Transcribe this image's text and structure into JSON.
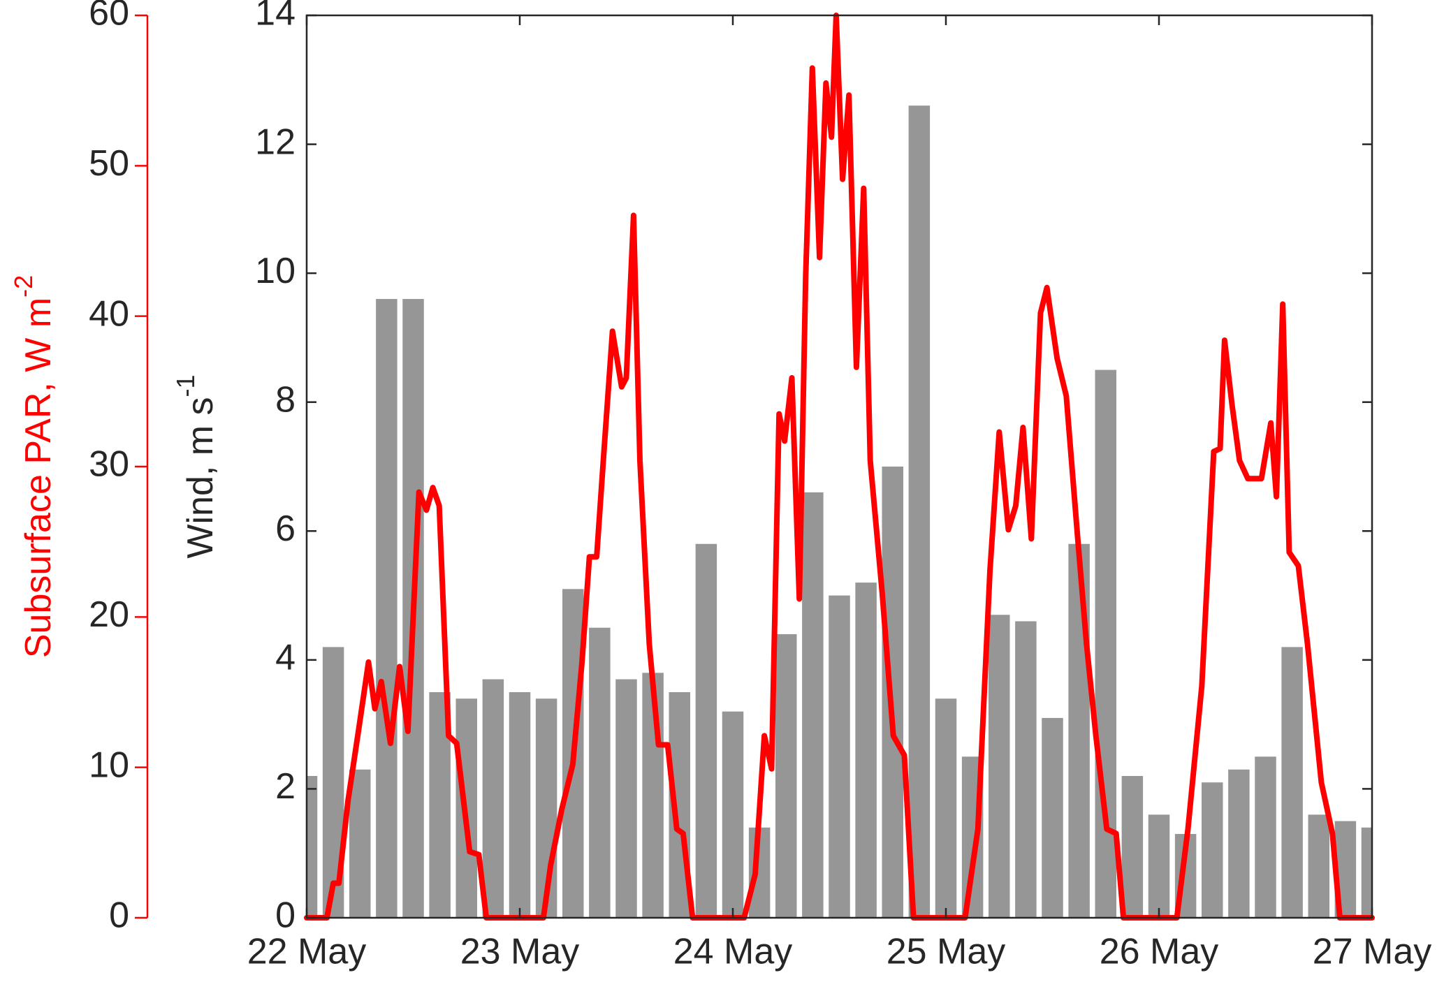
{
  "chart_data": {
    "type": "bar",
    "xlim": [
      0,
      5
    ],
    "xticks": [
      {
        "value": 0,
        "label": "22 May"
      },
      {
        "value": 1,
        "label": "23 May"
      },
      {
        "value": 2,
        "label": "24 May"
      },
      {
        "value": 3,
        "label": "25 May"
      },
      {
        "value": 4,
        "label": "26 May"
      },
      {
        "value": 5,
        "label": "27 May"
      }
    ],
    "y_label": "Wind, m s",
    "y_label_sup": "-1",
    "ylim": [
      0,
      14
    ],
    "yticks": [
      0,
      2,
      4,
      6,
      8,
      10,
      12,
      14
    ],
    "y2_label": "Subsurface PAR, W m",
    "y2_label_sup": "-2",
    "y2lim": [
      0,
      60
    ],
    "y2ticks": [
      0,
      10,
      20,
      30,
      40,
      50,
      60
    ],
    "series": [
      {
        "type": "bar",
        "color": "#969696",
        "x": [
          0,
          0.125,
          0.25,
          0.375,
          0.5,
          0.625,
          0.75,
          0.875,
          1,
          1.125,
          1.25,
          1.375,
          1.5,
          1.625,
          1.75,
          1.875,
          2,
          2.125,
          2.25,
          2.375,
          2.5,
          2.625,
          2.75,
          2.875,
          3,
          3.125,
          3.25,
          3.375,
          3.5,
          3.625,
          3.75,
          3.875,
          4,
          4.125,
          4.25,
          4.375,
          4.5,
          4.625,
          4.75,
          4.875,
          5
        ],
        "values": [
          2.2,
          4.2,
          2.3,
          9.6,
          9.6,
          3.5,
          3.4,
          3.7,
          3.5,
          3.4,
          5.1,
          4.5,
          3.7,
          3.8,
          3.5,
          5.8,
          3.2,
          1.4,
          4.4,
          6.6,
          5.0,
          5.2,
          7.0,
          12.6,
          3.4,
          2.5,
          4.7,
          4.6,
          3.1,
          5.8,
          8.5,
          2.2,
          1.6,
          1.3,
          2.1,
          2.3,
          2.5,
          4.2,
          1.6,
          1.5,
          1.4
        ]
      },
      {
        "type": "line",
        "axis": "y2",
        "color": "#ff0000",
        "x": [
          0,
          0.095,
          0.125,
          0.151,
          0.194,
          0.246,
          0.29,
          0.32,
          0.35,
          0.393,
          0.436,
          0.475,
          0.527,
          0.562,
          0.592,
          0.622,
          0.666,
          0.704,
          0.765,
          0.808,
          0.843,
          1.111,
          1.145,
          1.197,
          1.249,
          1.292,
          1.327,
          1.361,
          1.392,
          1.435,
          1.478,
          1.5,
          1.534,
          1.564,
          1.608,
          1.651,
          1.694,
          1.737,
          1.767,
          1.811,
          2.053,
          2.105,
          2.148,
          2.182,
          2.217,
          2.243,
          2.277,
          2.312,
          2.342,
          2.373,
          2.407,
          2.437,
          2.463,
          2.485,
          2.515,
          2.545,
          2.58,
          2.614,
          2.645,
          2.701,
          2.753,
          2.805,
          2.848,
          3.09,
          3.15,
          3.207,
          3.25,
          3.293,
          3.328,
          3.362,
          3.401,
          3.444,
          3.474,
          3.522,
          3.565,
          3.617,
          3.66,
          3.704,
          3.755,
          3.799,
          3.833,
          4.084,
          4.136,
          4.201,
          4.257,
          4.287,
          4.308,
          4.343,
          4.378,
          4.417,
          4.481,
          4.525,
          4.551,
          4.581,
          4.611,
          4.654,
          4.697,
          4.762,
          4.814,
          4.849,
          5
        ],
        "values": [
          0,
          0,
          2.3,
          2.3,
          7.8,
          12.7,
          17.0,
          13.9,
          15.7,
          11.6,
          16.7,
          12.4,
          28.3,
          27.1,
          28.6,
          27.4,
          12.1,
          11.6,
          4.4,
          4.2,
          0,
          0,
          3.5,
          7.2,
          10.2,
          17.0,
          24.0,
          24.0,
          30.4,
          39.0,
          35.3,
          35.9,
          46.7,
          30.4,
          18.2,
          11.5,
          11.5,
          5.9,
          5.6,
          0,
          0,
          2.9,
          12.1,
          9.9,
          33.5,
          31.7,
          35.9,
          21.2,
          42.7,
          56.5,
          43.9,
          55.5,
          51.9,
          60,
          49.1,
          54.7,
          36.6,
          48.5,
          30.4,
          21.6,
          12.1,
          10.8,
          0,
          0,
          5.9,
          23.1,
          32.3,
          25.8,
          27.4,
          32.6,
          25.2,
          40.2,
          41.9,
          37.2,
          34.7,
          25.5,
          18.2,
          12.1,
          5.9,
          5.6,
          0,
          0,
          5.9,
          15.4,
          31.0,
          31.2,
          38.4,
          34.1,
          30.4,
          29.2,
          29.2,
          32.9,
          28.0,
          40.8,
          24.3,
          23.4,
          18.2,
          9.0,
          5.6,
          0,
          0
        ]
      }
    ]
  }
}
